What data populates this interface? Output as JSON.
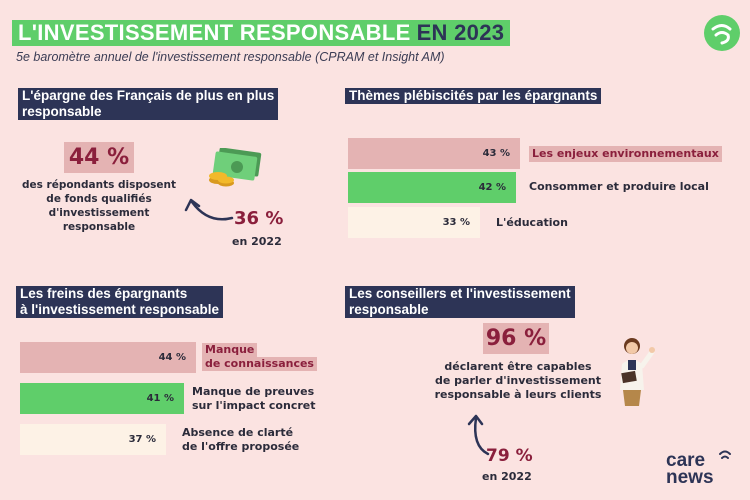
{
  "header": {
    "title_main": "L'INVESTISSEMENT RESPONSABLE",
    "title_year": "EN 2023",
    "subtitle": "5e baromètre annuel de l'investissement responsable (CPRAM et Insight AM)"
  },
  "section_epargne": {
    "heading_line1": "L'épargne des Français de plus en plus",
    "heading_line2": "responsable",
    "big_percent": "44 %",
    "desc_line1": "des répondants disposent",
    "desc_line2": "de fonds qualifiés",
    "desc_line3": "d'investissement",
    "desc_line4": "responsable",
    "prev_percent": "36 %",
    "prev_year": "en 2022",
    "icon": "money-icon"
  },
  "section_themes": {
    "heading": "Thèmes plébiscités par les épargnants",
    "items": [
      {
        "value": "43 %",
        "label": "Les enjeux environnementaux",
        "fill": 0.43
      },
      {
        "value": "42 %",
        "label": "Consommer et produire local",
        "fill": 0.42
      },
      {
        "value": "33 %",
        "label": "L'éducation",
        "fill": 0.33
      }
    ]
  },
  "section_freins": {
    "heading_line1": "Les freins  des épargnants",
    "heading_line2": "à l'investissement responsable",
    "items": [
      {
        "value": "44 %",
        "label_line1": "Manque",
        "label_line2": "de connaissances",
        "fill": 0.44
      },
      {
        "value": "41 %",
        "label_line1": "Manque de preuves",
        "label_line2": "sur l'impact concret",
        "fill": 0.41
      },
      {
        "value": "37 %",
        "label_line1": "Absence de clarté",
        "label_line2": "de l'offre proposée",
        "fill": 0.37
      }
    ]
  },
  "section_conseillers": {
    "heading_line1": "Les conseillers et l'investissement",
    "heading_line2": "responsable",
    "big_percent": "96 %",
    "desc_line1": "déclarent être capables",
    "desc_line2": "de parler d'investissement",
    "desc_line3": "responsable à leurs clients",
    "prev_percent": "79 %",
    "prev_year": "en 2022",
    "icon": "advisor-woman-icon"
  },
  "brand": {
    "line1": "care",
    "line2": "news",
    "logo_icon": "carenews-logo-icon"
  },
  "colors": {
    "green": "#5fce6a",
    "navy": "#2d3456",
    "pink": "#e4b3b3",
    "cream": "#fdf2e6",
    "burgundy": "#8a1f3c",
    "background": "#fbe3e1"
  }
}
